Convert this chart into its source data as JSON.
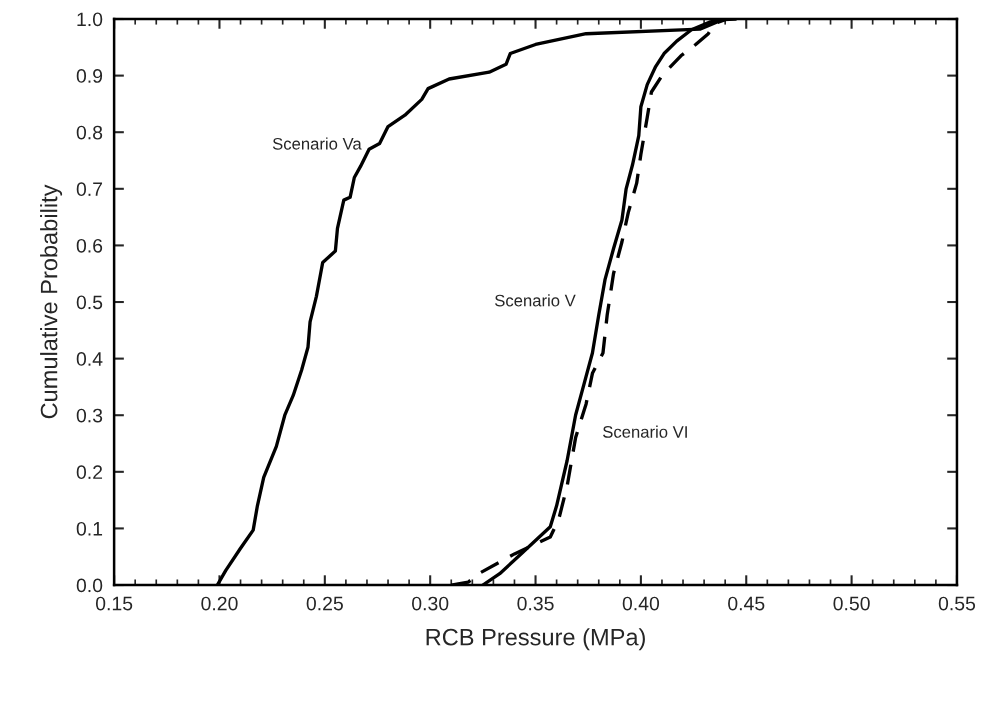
{
  "chart_data": {
    "type": "line",
    "xlabel": "RCB Pressure (MPa)",
    "ylabel": "Cumulative Probability",
    "xlim": [
      0.15,
      0.55
    ],
    "ylim": [
      0.0,
      1.0
    ],
    "xticks": [
      {
        "value": 0.15,
        "label": "0.15"
      },
      {
        "value": 0.2,
        "label": "0.20"
      },
      {
        "value": 0.25,
        "label": "0.25"
      },
      {
        "value": 0.3,
        "label": "0.30"
      },
      {
        "value": 0.35,
        "label": "0.35"
      },
      {
        "value": 0.4,
        "label": "0.40"
      },
      {
        "value": 0.45,
        "label": "0.45"
      },
      {
        "value": 0.5,
        "label": "0.50"
      },
      {
        "value": 0.55,
        "label": "0.55"
      }
    ],
    "yticks": [
      {
        "value": 0.0,
        "label": "0.0"
      },
      {
        "value": 0.1,
        "label": "0.1"
      },
      {
        "value": 0.2,
        "label": "0.2"
      },
      {
        "value": 0.3,
        "label": "0.3"
      },
      {
        "value": 0.4,
        "label": "0.4"
      },
      {
        "value": 0.5,
        "label": "0.5"
      },
      {
        "value": 0.6,
        "label": "0.6"
      },
      {
        "value": 0.7,
        "label": "0.7"
      },
      {
        "value": 0.8,
        "label": "0.8"
      },
      {
        "value": 0.9,
        "label": "0.9"
      },
      {
        "value": 1.0,
        "label": "1.0"
      }
    ],
    "grid": false,
    "marker": "none",
    "series": [
      {
        "name": "Scenario Va",
        "color": "#000000",
        "line_style": "solid",
        "x": [
          0.199,
          0.203,
          0.21,
          0.216,
          0.218,
          0.221,
          0.227,
          0.231,
          0.235,
          0.239,
          0.242,
          0.243,
          0.246,
          0.248,
          0.249,
          0.255,
          0.256,
          0.259,
          0.262,
          0.264,
          0.267,
          0.271,
          0.276,
          0.28,
          0.288,
          0.296,
          0.299,
          0.309,
          0.328,
          0.336,
          0.338,
          0.35,
          0.374,
          0.428,
          0.439,
          0.445
        ],
        "values": [
          0.0,
          0.026,
          0.065,
          0.097,
          0.14,
          0.19,
          0.245,
          0.3,
          0.335,
          0.38,
          0.42,
          0.465,
          0.51,
          0.55,
          0.57,
          0.59,
          0.63,
          0.68,
          0.685,
          0.72,
          0.74,
          0.77,
          0.78,
          0.81,
          0.83,
          0.858,
          0.877,
          0.894,
          0.906,
          0.92,
          0.939,
          0.955,
          0.974,
          0.982,
          0.999,
          1.0
        ]
      },
      {
        "name": "Scenario V",
        "color": "#000000",
        "line_style": "solid",
        "x": [
          0.325,
          0.333,
          0.344,
          0.357,
          0.36,
          0.365,
          0.369,
          0.373,
          0.377,
          0.38,
          0.383,
          0.387,
          0.391,
          0.393,
          0.396,
          0.399,
          0.4,
          0.403,
          0.407,
          0.411,
          0.417,
          0.424,
          0.433,
          0.439
        ],
        "values": [
          0.0,
          0.02,
          0.058,
          0.103,
          0.14,
          0.22,
          0.3,
          0.355,
          0.41,
          0.477,
          0.54,
          0.594,
          0.645,
          0.7,
          0.742,
          0.794,
          0.845,
          0.884,
          0.916,
          0.939,
          0.961,
          0.981,
          0.995,
          1.0
        ]
      },
      {
        "name": "Scenario VI",
        "color": "#000000",
        "line_style": "dashed",
        "x": [
          0.31,
          0.318,
          0.323,
          0.34,
          0.357,
          0.361,
          0.365,
          0.369,
          0.374,
          0.377,
          0.382,
          0.384,
          0.387,
          0.391,
          0.394,
          0.398,
          0.4,
          0.403,
          0.405,
          0.41,
          0.419,
          0.426,
          0.432,
          0.435,
          0.441
        ],
        "values": [
          0.0,
          0.005,
          0.02,
          0.055,
          0.085,
          0.116,
          0.175,
          0.26,
          0.32,
          0.374,
          0.41,
          0.477,
          0.55,
          0.606,
          0.658,
          0.71,
          0.761,
          0.826,
          0.871,
          0.9,
          0.935,
          0.955,
          0.974,
          0.992,
          1.0
        ]
      }
    ]
  }
}
